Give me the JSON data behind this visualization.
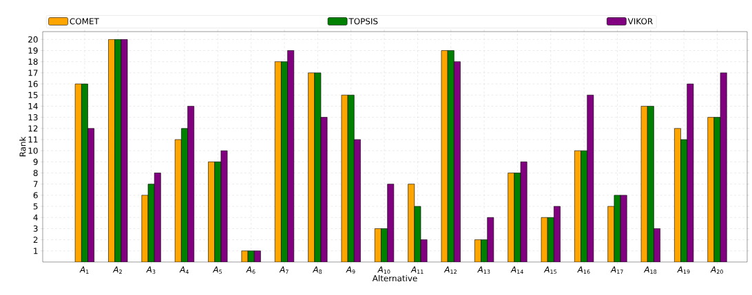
{
  "chart_data": {
    "type": "bar",
    "xlabel": "Alternative",
    "ylabel": "Rank",
    "categories": [
      "*A*$_{1}$",
      "*A*$_{2}$",
      "*A*$_{3}$",
      "*A*$_{4}$",
      "*A*$_{5}$",
      "*A*$_{6}$",
      "*A*$_{7}$",
      "*A*$_{8}$",
      "*A*$_{9}$",
      "*A*$_{10}$",
      "*A*$_{11}$",
      "*A*$_{12}$",
      "*A*$_{13}$",
      "*A*$_{14}$",
      "*A*$_{15}$",
      "*A*$_{16}$",
      "*A*$_{17}$",
      "*A*$_{18}$",
      "*A*$_{19}$",
      "*A*$_{20}$"
    ],
    "series": [
      {
        "name": "COMET",
        "color": "#ffa500",
        "values": [
          16,
          20,
          6,
          11,
          9,
          1,
          18,
          17,
          15,
          3,
          7,
          19,
          2,
          8,
          4,
          10,
          5,
          14,
          12,
          13
        ]
      },
      {
        "name": "TOPSIS",
        "color": "#008000",
        "values": [
          16,
          20,
          7,
          12,
          9,
          1,
          18,
          17,
          15,
          3,
          5,
          19,
          2,
          8,
          4,
          10,
          6,
          14,
          11,
          13
        ]
      },
      {
        "name": "VIKOR",
        "color": "#800080",
        "values": [
          12,
          20,
          8,
          14,
          10,
          1,
          19,
          13,
          11,
          7,
          2,
          18,
          4,
          9,
          5,
          15,
          6,
          3,
          16,
          17
        ]
      }
    ],
    "ylim": [
      0,
      20.7
    ],
    "yticks": [
      1,
      2,
      3,
      4,
      5,
      6,
      7,
      8,
      9,
      10,
      11,
      12,
      13,
      14,
      15,
      16,
      17,
      18,
      19,
      20
    ],
    "grid": true,
    "legend": "top"
  }
}
